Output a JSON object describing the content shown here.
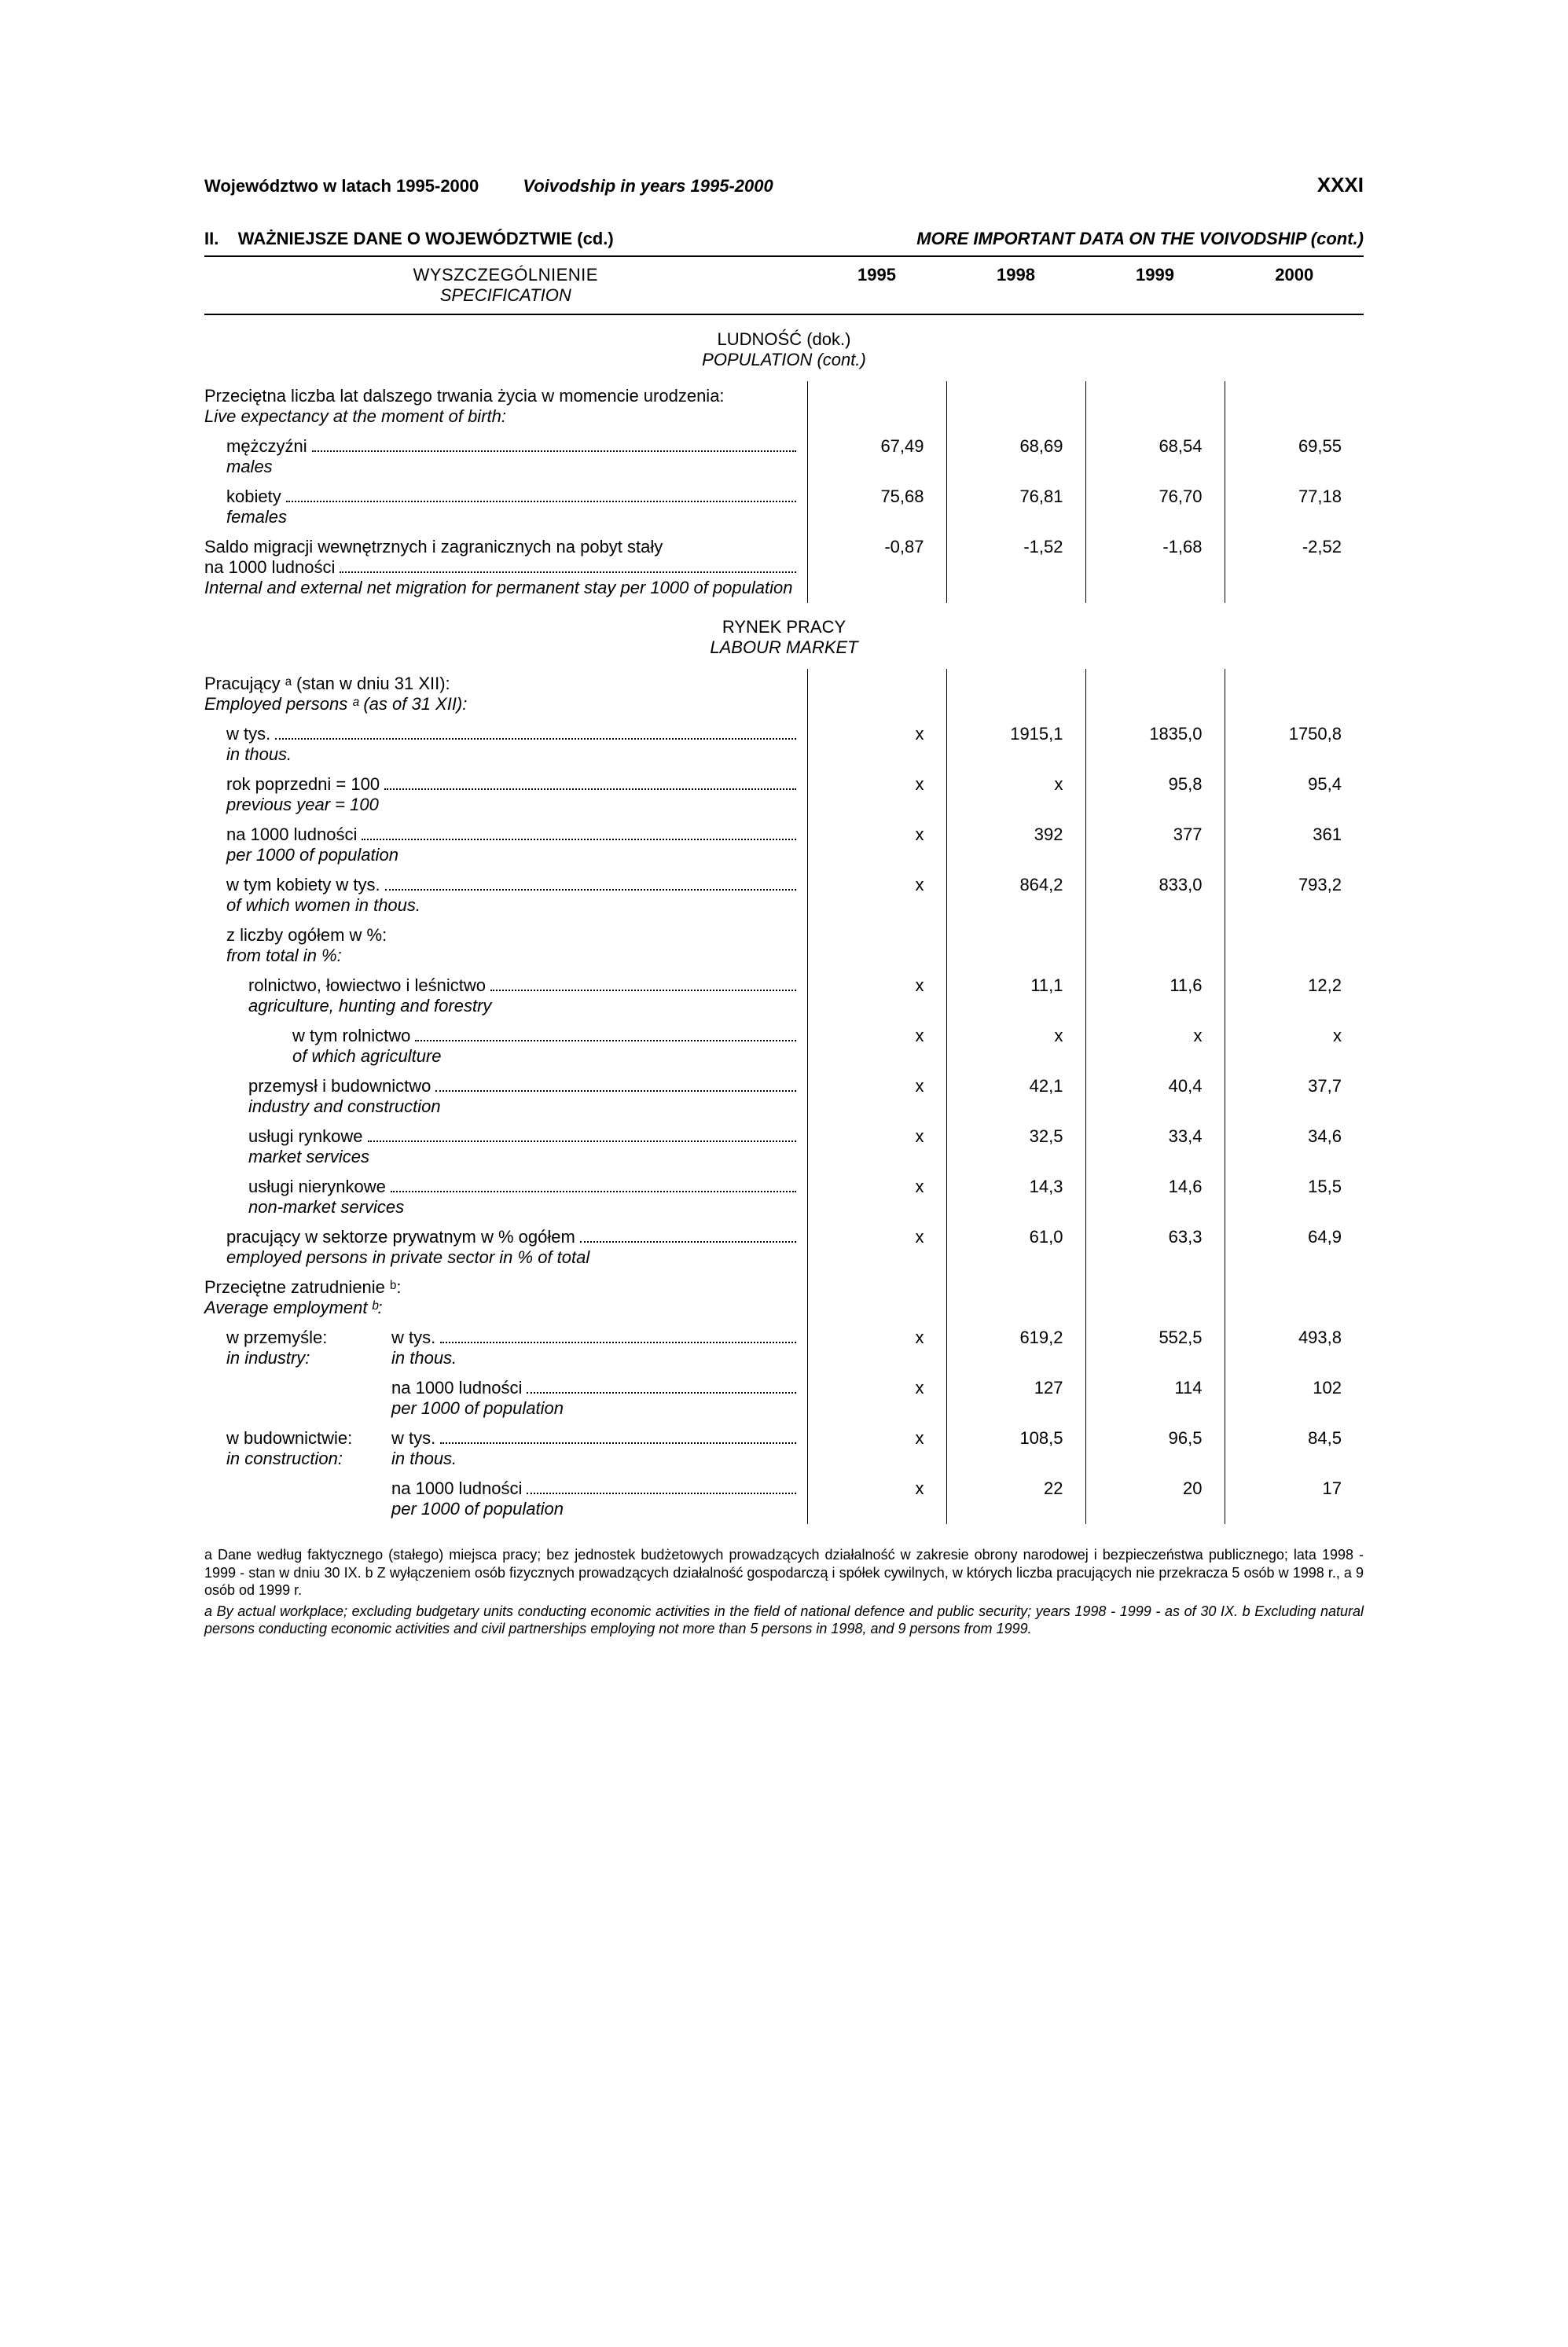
{
  "page": {
    "header_left": "Województwo w latach 1995-2000",
    "header_left_it": "Voivodship in years 1995-2000",
    "header_right": "XXXI",
    "section_no": "II.",
    "section_title_pl": "WAŻNIEJSZE DANE O WOJEWÓDZTWIE (cd.)",
    "section_title_en": "MORE IMPORTANT DATA ON THE VOIVODSHIP (cont.)"
  },
  "table_head": {
    "spec_pl": "WYSZCZEGÓLNIENIE",
    "spec_en": "SPECIFICATION",
    "years": [
      "1995",
      "1998",
      "1999",
      "2000"
    ]
  },
  "sections": {
    "pop": {
      "pl": "LUDNOŚĆ (dok.)",
      "en": "POPULATION (cont.)"
    },
    "labour": {
      "pl": "RYNEK PRACY",
      "en": "LABOUR MARKET"
    }
  },
  "rows": {
    "life_exp_hdr": {
      "pl": "Przeciętna liczba lat dalszego trwania życia w momencie urodzenia:",
      "en": "Live expectancy at the moment of birth:"
    },
    "males": {
      "pl": "mężczyźni",
      "en": "males",
      "v": [
        "67,49",
        "68,69",
        "68,54",
        "69,55"
      ]
    },
    "females": {
      "pl": "kobiety",
      "en": "females",
      "v": [
        "75,68",
        "76,81",
        "76,70",
        "77,18"
      ]
    },
    "migration": {
      "pl1": "Saldo migracji wewnętrznych i zagranicznych na pobyt stały",
      "pl2": "na 1000 ludności",
      "en": "Internal and external net migration for permanent stay per 1000 of population",
      "v": [
        "-0,87",
        "-1,52",
        "-1,68",
        "-2,52"
      ]
    },
    "employed_hdr": {
      "pl": "Pracujący ᵃ (stan w dniu 31 XII):",
      "en": "Employed persons ᵃ (as of 31 XII):"
    },
    "in_thous": {
      "pl": "w tys.",
      "en": "in thous.",
      "v": [
        "x",
        "1915,1",
        "1835,0",
        "1750,8"
      ]
    },
    "prev_year": {
      "pl": "rok poprzedni = 100",
      "en": "previous year = 100",
      "v": [
        "x",
        "x",
        "95,8",
        "95,4"
      ]
    },
    "per1000": {
      "pl": "na 1000 ludności",
      "en": "per 1000 of population",
      "v": [
        "x",
        "392",
        "377",
        "361"
      ]
    },
    "women": {
      "pl": "w tym kobiety w tys.",
      "en": "of which women in thous.",
      "v": [
        "x",
        "864,2",
        "833,0",
        "793,2"
      ]
    },
    "from_total_hdr": {
      "pl": "z liczby ogółem w %:",
      "en": "from total in %:"
    },
    "agri": {
      "pl": "rolnictwo, łowiectwo i leśnictwo",
      "en": "agriculture, hunting and forestry",
      "v": [
        "x",
        "11,1",
        "11,6",
        "12,2"
      ]
    },
    "of_agri": {
      "pl": "w tym rolnictwo",
      "en": "of which agriculture",
      "v": [
        "x",
        "x",
        "x",
        "x"
      ]
    },
    "industry": {
      "pl": "przemysł i budownictwo",
      "en": "industry and construction",
      "v": [
        "x",
        "42,1",
        "40,4",
        "37,7"
      ]
    },
    "market_srv": {
      "pl": "usługi rynkowe",
      "en": "market services",
      "v": [
        "x",
        "32,5",
        "33,4",
        "34,6"
      ]
    },
    "nonmarket_srv": {
      "pl": "usługi nierynkowe",
      "en": "non-market services",
      "v": [
        "x",
        "14,3",
        "14,6",
        "15,5"
      ]
    },
    "private": {
      "pl": "pracujący w sektorze prywatnym w % ogółem",
      "en": "employed persons in private sector in % of total",
      "v": [
        "x",
        "61,0",
        "63,3",
        "64,9"
      ]
    },
    "avg_emp_hdr": {
      "pl": "Przeciętne zatrudnienie ᵇ:",
      "en": "Average employment ᵇ:"
    },
    "ind_thous": {
      "pl_a": "w przemyśle:",
      "en_a": "in industry:",
      "pl_b": "w tys.",
      "en_b": "in thous.",
      "v": [
        "x",
        "619,2",
        "552,5",
        "493,8"
      ]
    },
    "ind_per1000": {
      "pl": "na 1000 ludności",
      "en": "per 1000 of population",
      "v": [
        "x",
        "127",
        "114",
        "102"
      ]
    },
    "con_thous": {
      "pl_a": "w budownictwie:",
      "en_a": "in construction:",
      "pl_b": "w tys.",
      "en_b": "in thous.",
      "v": [
        "x",
        "108,5",
        "96,5",
        "84,5"
      ]
    },
    "con_per1000": {
      "pl": "na 1000 ludności",
      "en": "per 1000 of population",
      "v": [
        "x",
        "22",
        "20",
        "17"
      ]
    }
  },
  "footnotes": {
    "pl": "a Dane według faktycznego (stałego) miejsca pracy; bez jednostek budżetowych prowadzących działalność w zakresie obrony narodowej i bezpieczeństwa publicznego; lata 1998 - 1999 - stan w dniu 30 IX. b Z wyłączeniem osób fizycznych prowadzących działalność gospodarczą i spółek cywilnych, w których liczba pracujących nie przekracza 5 osób w 1998 r., a 9 osób od 1999 r.",
    "en": "a By actual workplace; excluding budgetary units conducting economic activities in the field of national defence and public security; years 1998 - 1999 - as of 30 IX. b Excluding natural persons conducting economic activities and civil partnerships employing not more than 5 persons in 1998, and 9 persons from 1999."
  }
}
